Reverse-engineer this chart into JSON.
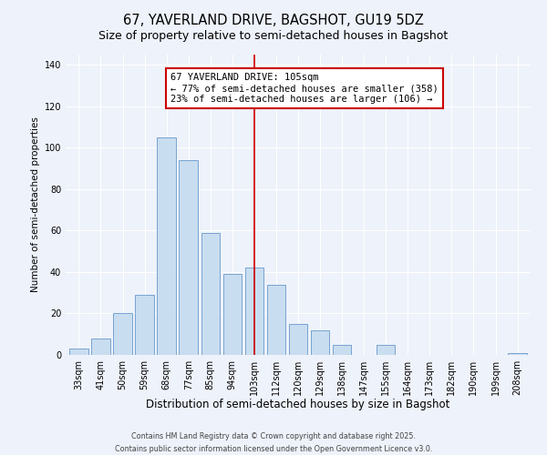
{
  "title": "67, YAVERLAND DRIVE, BAGSHOT, GU19 5DZ",
  "subtitle": "Size of property relative to semi-detached houses in Bagshot",
  "xlabel": "Distribution of semi-detached houses by size in Bagshot",
  "ylabel": "Number of semi-detached properties",
  "bar_labels": [
    "33sqm",
    "41sqm",
    "50sqm",
    "59sqm",
    "68sqm",
    "77sqm",
    "85sqm",
    "94sqm",
    "103sqm",
    "112sqm",
    "120sqm",
    "129sqm",
    "138sqm",
    "147sqm",
    "155sqm",
    "164sqm",
    "173sqm",
    "182sqm",
    "190sqm",
    "199sqm",
    "208sqm"
  ],
  "bar_values": [
    3,
    8,
    20,
    29,
    105,
    94,
    59,
    39,
    42,
    34,
    15,
    12,
    5,
    0,
    5,
    0,
    0,
    0,
    0,
    0,
    1
  ],
  "bar_color": "#c9ddf0",
  "bar_edgecolor": "#6699cc",
  "vline_index": 8,
  "vline_color": "#cc0000",
  "annotation_line1": "67 YAVERLAND DRIVE: 105sqm",
  "annotation_line2": "← 77% of semi-detached houses are smaller (358)",
  "annotation_line3": "23% of semi-detached houses are larger (106) →",
  "annotation_box_edgecolor": "#cc0000",
  "ylim": [
    0,
    145
  ],
  "yticks": [
    0,
    20,
    40,
    60,
    80,
    100,
    120,
    140
  ],
  "grid_color": "#d0d8e8",
  "bg_color": "#eef2fa",
  "plot_bg_color": "#eef2fa",
  "footer_line1": "Contains HM Land Registry data © Crown copyright and database right 2025.",
  "footer_line2": "Contains public sector information licensed under the Open Government Licence v3.0.",
  "title_fontsize": 10.5,
  "subtitle_fontsize": 9,
  "xlabel_fontsize": 8.5,
  "ylabel_fontsize": 7.5,
  "tick_fontsize": 7,
  "annot_fontsize": 7.5,
  "footer_fontsize": 5.8
}
